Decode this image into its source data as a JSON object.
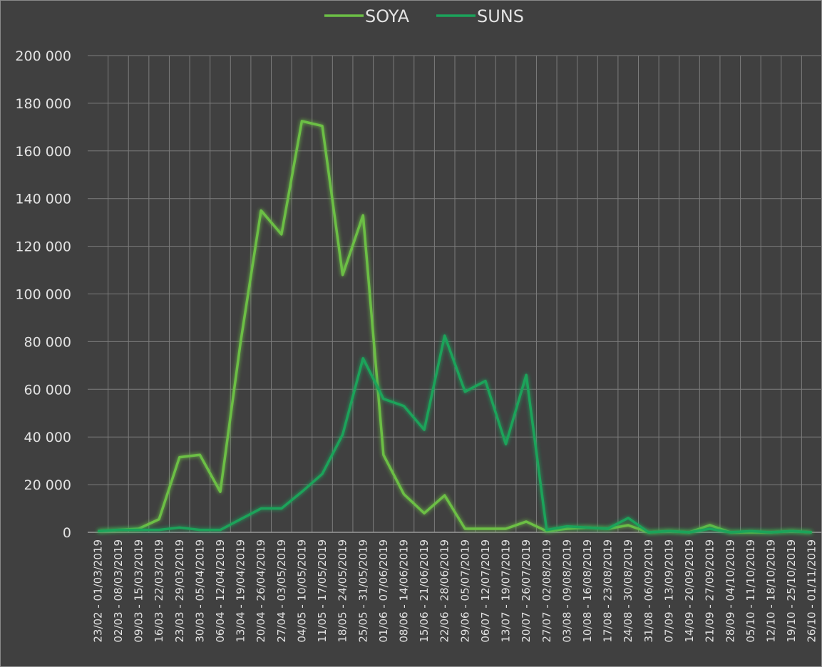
{
  "chart_data": {
    "type": "line",
    "categories": [
      "23/02 - 01/03/2019",
      "02/03 - 08/03/2019",
      "09/03 - 15/03/2019",
      "16/03 - 22/03/2019",
      "23/03 - 29/03/2019",
      "30/03 - 05/04/2019",
      "06/04 - 12/04/2019",
      "13/04 - 19/04/2019",
      "20/04 - 26/04/2019",
      "27/04 - 03/05/2019",
      "04/05 - 10/05/2019",
      "11/05 - 17/05/2019",
      "18/05 - 24/05/2019",
      "25/05 - 31/05/2019",
      "01/06 - 07/06/2019",
      "08/06 - 14/06/2019",
      "15/06 - 21/06/2019",
      "22/06 - 28/06/2019",
      "29/06 - 05/07/2019",
      "06/07 - 12/07/2019",
      "13/07 - 19/07/2019",
      "20/07 - 26/07/2019",
      "27/07 - 02/08/2019",
      "03/08 - 09/08/2019",
      "10/08 - 16/08/2019",
      "17/08 - 23/08/2019",
      "24/08 - 30/08/2019",
      "31/08 - 06/09/2019",
      "07/09 - 13/09/2019",
      "14/09 - 20/09/2019",
      "21/09 - 27/09/2019",
      "28/09 - 04/10/2019",
      "05/10 - 11/10/2019",
      "12/10 - 18/10/2019",
      "19/10 - 25/10/2019",
      "26/10 - 01/11/2019"
    ],
    "series": [
      {
        "name": "SOYA",
        "color": "#6cbf45",
        "values": [
          500,
          1000,
          1500,
          5500,
          31500,
          32500,
          17000,
          80000,
          135000,
          125000,
          172500,
          170500,
          108000,
          133000,
          32500,
          16000,
          8000,
          15500,
          1500,
          1500,
          1500,
          4500,
          500,
          1500,
          2000,
          1500,
          3000,
          0,
          500,
          0,
          3000,
          0,
          0,
          0,
          500,
          0
        ]
      },
      {
        "name": "SUNS",
        "color": "#1ba35a",
        "values": [
          500,
          1000,
          1000,
          1000,
          2000,
          1000,
          1000,
          5500,
          10000,
          10000,
          17000,
          24500,
          41000,
          73000,
          56000,
          53000,
          43000,
          82500,
          59000,
          63500,
          37000,
          66000,
          1000,
          2500,
          2000,
          1500,
          6000,
          0,
          500,
          0,
          1500,
          0,
          500,
          0,
          500,
          0
        ]
      }
    ],
    "ylim": [
      0,
      200000
    ],
    "yticks": [
      0,
      {
        "value": 20000,
        "label": "20 000"
      },
      {
        "value": 40000,
        "label": "40 000"
      },
      {
        "value": 60000,
        "label": "60 000"
      },
      {
        "value": 80000,
        "label": "80 000"
      },
      {
        "value": 100000,
        "label": "100 000"
      },
      {
        "value": 120000,
        "label": "120 000"
      },
      {
        "value": 140000,
        "label": "140 000"
      },
      {
        "value": 160000,
        "label": "160 000"
      },
      {
        "value": 180000,
        "label": "180 000"
      },
      {
        "value": 200000,
        "label": "200 000"
      }
    ],
    "grid": true,
    "legend": "top"
  }
}
